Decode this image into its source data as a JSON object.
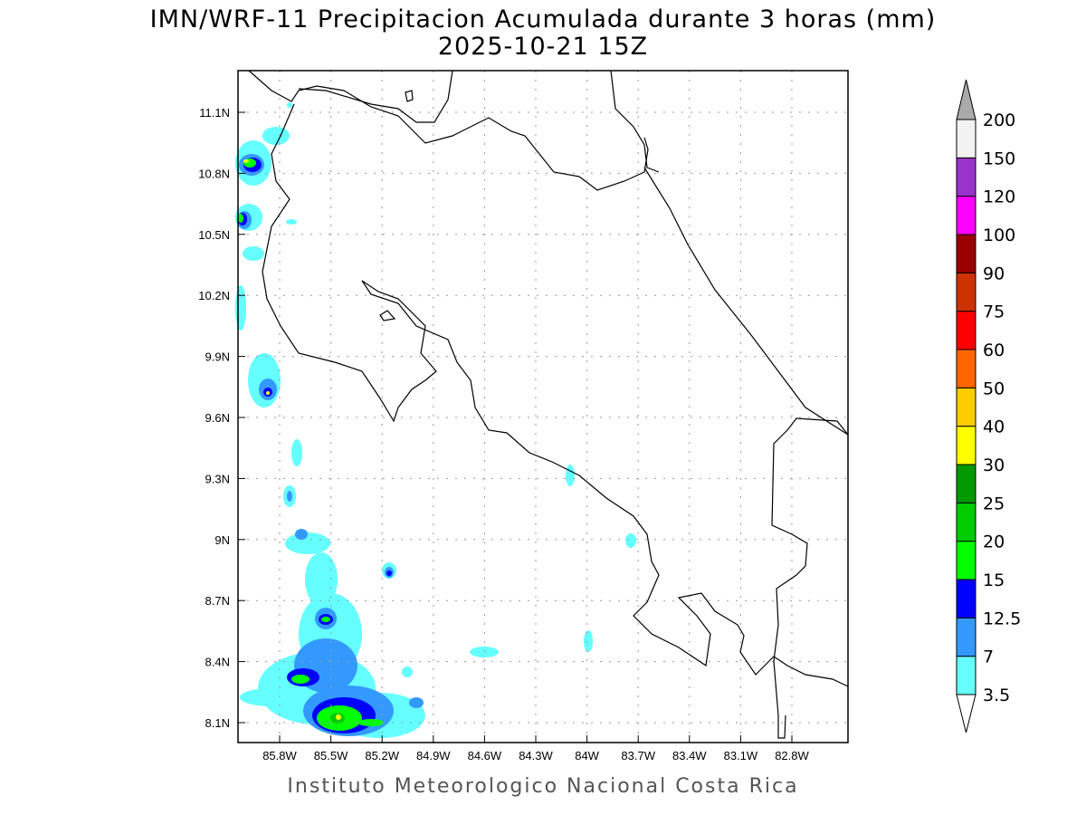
{
  "title": "IMN/WRF-11 Precipitacion Acumulada durante 3 horas (mm)",
  "subtitle": "2025-10-21 15Z",
  "footer": "Instituto Meteorologico Nacional Costa Rica",
  "map": {
    "lon_ticks": [
      85.8,
      85.5,
      85.2,
      84.9,
      84.6,
      84.3,
      84.0,
      83.7,
      83.4,
      83.1,
      82.8
    ],
    "lon_labels": [
      "85.8W",
      "85.5W",
      "85.2W",
      "84.9W",
      "84.6W",
      "84.3W",
      "84W",
      "83.7W",
      "83.4W",
      "83.1W",
      "82.8W"
    ],
    "lat_ticks": [
      11.1,
      10.8,
      10.5,
      10.2,
      9.9,
      9.6,
      9.3,
      9.0,
      8.7,
      8.4,
      8.1
    ],
    "lat_labels": [
      "11.1N",
      "10.8N",
      "10.5N",
      "10.2N",
      "9.9N",
      "9.6N",
      "9.3N",
      "9N",
      "8.7N",
      "8.4N",
      "8.1N"
    ]
  },
  "colorbar": {
    "unit": "mm",
    "labels": [
      "3.5",
      "7",
      "12.5",
      "15",
      "20",
      "25",
      "30",
      "40",
      "50",
      "60",
      "75",
      "90",
      "100",
      "120",
      "150",
      "200"
    ],
    "colors": [
      "#66ffff",
      "#3399ff",
      "#0000ff",
      "#00ff00",
      "#00cc00",
      "#009900",
      "#ffff00",
      "#ffcc00",
      "#ff6600",
      "#ff0000",
      "#cc3300",
      "#990000",
      "#ff00ff",
      "#9933cc",
      "#f2f2f2"
    ],
    "over_color": "#aaaaaa",
    "under_color": "#ffffff"
  }
}
